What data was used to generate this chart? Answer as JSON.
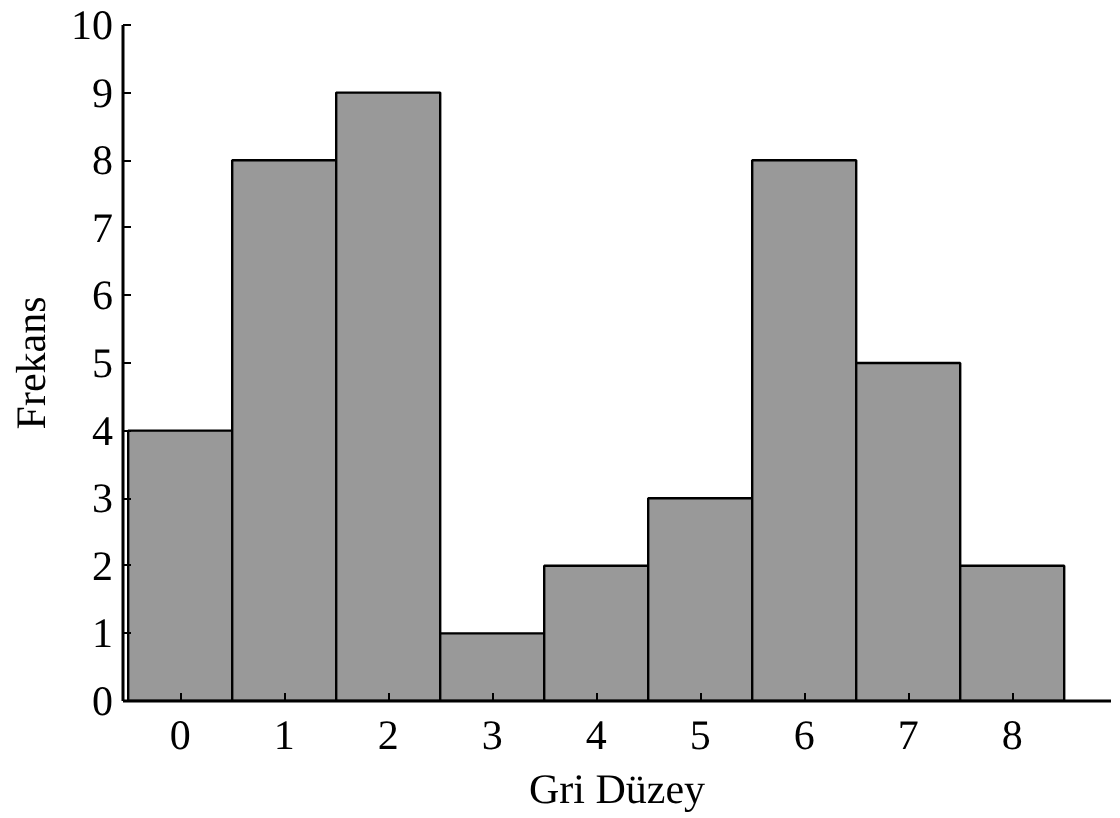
{
  "chart_data": {
    "type": "bar",
    "xlabel": "Gri Düzey",
    "ylabel": "Frekans",
    "categories": [
      "0",
      "1",
      "2",
      "3",
      "4",
      "5",
      "6",
      "7",
      "8"
    ],
    "values": [
      4,
      8,
      9,
      1,
      2,
      3,
      8,
      5,
      2
    ],
    "color": "#999999",
    "ylim": [
      0,
      10
    ],
    "yticks": [
      0,
      1,
      2,
      3,
      4,
      5,
      6,
      7,
      8,
      9,
      10
    ],
    "grid": false
  }
}
